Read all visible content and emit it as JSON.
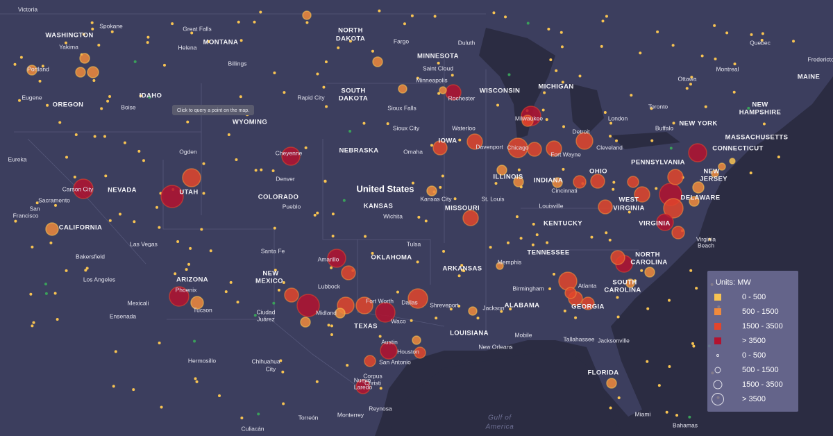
{
  "map": {
    "tooltip": "Click to query a point on the map.",
    "country": "United States",
    "states": [
      "WASHINGTON",
      "MONTANA",
      "NORTH",
      "DAKOTA",
      "MINNESOTA",
      "MAINE",
      "MICHIGAN",
      "WISCONSIN",
      "SOUTH",
      "DAKOTA",
      "IDAHO",
      "OREGON",
      "NEW",
      "HAMPSHIRE",
      "WYOMING",
      "NEW YORK",
      "MASSACHUSETTS",
      "IOWA",
      "CONNECTICUT",
      "NEBRASKA",
      "PENNSYLVANIA",
      "NEW",
      "JERSEY",
      "OHIO",
      "ILLINOIS",
      "INDIANA",
      "NEVADA",
      "UTAH",
      "COLORADO",
      "DELAWARE",
      "WEST",
      "VIRGINIA",
      "KANSAS",
      "MISSOURI",
      "KENTUCKY",
      "VIRGINIA",
      "CALIFORNIA",
      "TENNESSEE",
      "NORTH",
      "CAROLINA",
      "OKLAHOMA",
      "NEW",
      "MEXICO",
      "ARKANSAS",
      "ARIZONA",
      "SOUTH",
      "CAROLINA",
      "ALABAMA",
      "GEORGIA",
      "TEXAS",
      "LOUISIANA",
      "FLORIDA"
    ],
    "cities": [
      "Victoria",
      "Spokane",
      "Great Falls",
      "Fargo",
      "Duluth",
      "Yakima",
      "Helena",
      "Quebec",
      "Fredericton",
      "Portland",
      "Billings",
      "Saint Cloud",
      "Montreal",
      "Ottawa",
      "Minneapolis",
      "Eugene",
      "Rapid City",
      "Rochester",
      "Boise",
      "Sioux Falls",
      "Toronto",
      "Milwaukee",
      "London",
      "Sioux City",
      "Waterloo",
      "Buffalo",
      "Detroit",
      "Davenport",
      "Chicago",
      "Cleveland",
      "Ogden",
      "Cheyenne",
      "Omaha",
      "Fort Wayne",
      "Eureka",
      "Denver",
      "Carson City",
      "Cincinnati",
      "Kansas City",
      "St. Louis",
      "Sacramento",
      "Louisville",
      "Pueblo",
      "San",
      "Francisco",
      "Wichita",
      "Virginia",
      "Beach",
      "Las Vegas",
      "Tulsa",
      "Santa Fe",
      "Bakersfield",
      "Amarillo",
      "Memphis",
      "Los Angeles",
      "Lubbock",
      "Phoenix",
      "Birmingham",
      "Atlanta",
      "Fort Worth",
      "Dallas",
      "Mexicali",
      "Shreveport",
      "Jackson",
      "Tucson",
      "Midland",
      "Waco",
      "Ensenada",
      "Ciudad",
      "Juárez",
      "Mobile",
      "Tallahassee",
      "Jacksonville",
      "Austin",
      "New Orleans",
      "Houston",
      "San Antonio",
      "Hermosillo",
      "Chihuahua",
      "City",
      "Corpus",
      "Christi",
      "Nuevo",
      "Laredo",
      "Reynosa",
      "Miami",
      "Monterrey",
      "Torreón",
      "Bahamas",
      "Culiacán"
    ],
    "water": [
      "Gulf of",
      "America"
    ],
    "legend": {
      "title": "Units: MW",
      "color_items": [
        "0 - 500",
        "500 - 1500",
        "1500 - 3500",
        "> 3500"
      ],
      "size_items": [
        "0 - 500",
        "500 - 1500",
        "1500 - 3500",
        "> 3500"
      ]
    }
  }
}
